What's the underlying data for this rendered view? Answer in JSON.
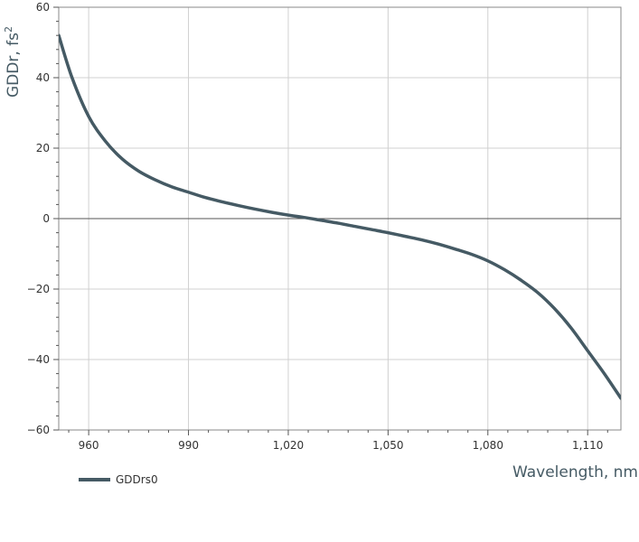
{
  "chart_data": {
    "type": "line",
    "title": "",
    "xlabel": "Wavelength, nm",
    "ylabel": "GDDr, fs",
    "ylabel_superscript": "2",
    "xlim": [
      951,
      1120
    ],
    "ylim": [
      -60,
      60
    ],
    "x_ticks": [
      960,
      990,
      1020,
      1050,
      1080,
      1110
    ],
    "x_tick_labels": [
      "960",
      "990",
      "1,020",
      "1,050",
      "1,080",
      "1,110"
    ],
    "y_ticks": [
      -60,
      -40,
      -20,
      0,
      20,
      40,
      60
    ],
    "y_tick_labels": [
      "−60",
      "−40",
      "−20",
      "0",
      "20",
      "40",
      "60"
    ],
    "grid": true,
    "legend_position": "bottom-left",
    "series": [
      {
        "name": "GDDrs0",
        "color": "#455a64",
        "x": [
          951,
          955,
          960,
          965,
          970,
          975,
          980,
          985,
          990,
          995,
          1000,
          1005,
          1010,
          1015,
          1020,
          1025,
          1030,
          1035,
          1040,
          1045,
          1050,
          1055,
          1060,
          1065,
          1070,
          1075,
          1080,
          1085,
          1090,
          1095,
          1100,
          1105,
          1110,
          1115,
          1120
        ],
        "y": [
          52,
          40,
          29,
          22,
          17,
          13.5,
          11,
          9,
          7.5,
          6,
          4.8,
          3.7,
          2.7,
          1.8,
          1,
          0.3,
          -0.5,
          -1.3,
          -2.2,
          -3.1,
          -4,
          -5,
          -6,
          -7.2,
          -8.6,
          -10.1,
          -12,
          -14.5,
          -17.5,
          -21,
          -25.5,
          -31,
          -37.5,
          -44,
          -51
        ]
      }
    ]
  }
}
